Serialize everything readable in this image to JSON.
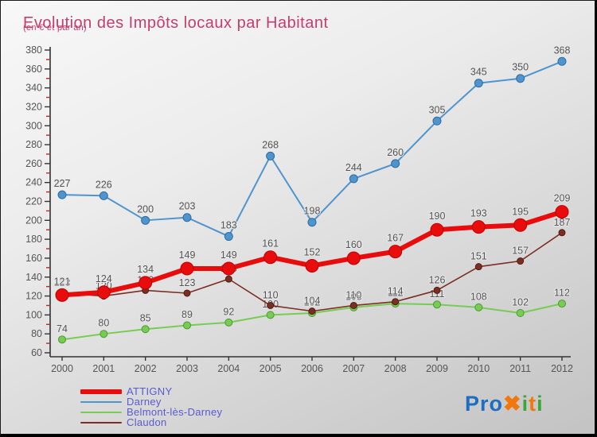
{
  "header": {
    "title": "Evolution des Impôts locaux par Habitant",
    "subtitle": "(en € et par an)",
    "title_color": "#c63d6e"
  },
  "chart_data": {
    "type": "line",
    "x_labels": [
      "2000",
      "2001",
      "2002",
      "2003",
      "2004",
      "2005",
      "2006",
      "2007",
      "2008",
      "2009",
      "2010",
      "2011",
      "2012"
    ],
    "ylim": [
      60,
      380
    ],
    "yticks": [
      60,
      80,
      100,
      120,
      140,
      160,
      180,
      200,
      220,
      240,
      260,
      280,
      300,
      320,
      340,
      360,
      380
    ],
    "minor_tick_values": [
      70,
      90,
      110,
      130,
      150,
      170,
      190,
      210,
      230,
      250,
      270,
      290,
      310,
      330,
      350,
      370
    ],
    "grid": false,
    "legend_position": "bottom-left",
    "axis_color": "#333333",
    "minor_tick_color": "#cc2222",
    "tick_label_color": "#555555",
    "data_label_color": "#555555",
    "series": [
      {
        "name": "ATTIGNY",
        "color": "#e80c0c",
        "edge": "#c00000",
        "line_width": 6,
        "marker_radius": 8,
        "values": [
          121,
          124,
          134,
          149,
          149,
          161,
          152,
          160,
          167,
          190,
          193,
          195,
          209
        ]
      },
      {
        "name": "Darney",
        "color": "#4f94cd",
        "edge": "#2d6da3",
        "line_width": 2,
        "marker_radius": 5,
        "values": [
          227,
          226,
          200,
          203,
          183,
          268,
          198,
          244,
          260,
          305,
          345,
          350,
          368
        ]
      },
      {
        "name": "Belmont-lès-Darney",
        "color": "#77cc55",
        "edge": "#4a9a2e",
        "line_width": 2,
        "marker_radius": 4.5,
        "values": [
          74,
          80,
          85,
          89,
          92,
          100,
          102,
          108,
          112,
          111,
          108,
          102,
          112
        ]
      },
      {
        "name": "Claudon",
        "color": "#7c2e22",
        "edge": "#4e1c13",
        "line_width": 1.6,
        "marker_radius": 4,
        "values": [
          123,
          120,
          126,
          123,
          138,
          110,
          104,
          110,
          114,
          126,
          151,
          157,
          187
        ]
      }
    ]
  },
  "legend": {
    "text_color": "#5a5ad1"
  },
  "logo": {
    "segments": [
      {
        "text": "Pro",
        "color": "#1b6ec2"
      },
      {
        "text": "✖",
        "color": "#f0780f"
      },
      {
        "text": "i",
        "color": "#3fa53a"
      },
      {
        "text": "t",
        "color": "#f0780f"
      },
      {
        "text": "i",
        "color": "#3fa53a"
      }
    ]
  }
}
